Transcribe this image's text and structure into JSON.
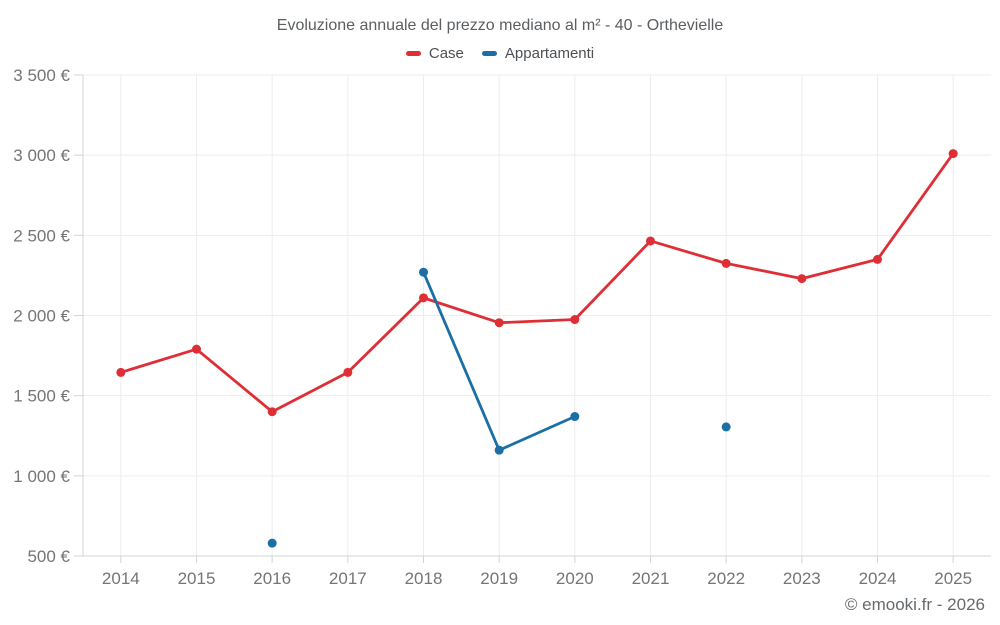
{
  "chart_data": {
    "type": "line",
    "title": "Evoluzione annuale del prezzo mediano al m² - 40 - Orthevielle",
    "footer": "© emooki.fr - 2026",
    "categories": [
      "2014",
      "2015",
      "2016",
      "2017",
      "2018",
      "2019",
      "2020",
      "2021",
      "2022",
      "2023",
      "2024",
      "2025"
    ],
    "series": [
      {
        "name": "Case",
        "color": "#df2f36",
        "values": [
          1645,
          1790,
          1400,
          1645,
          2110,
          1955,
          1975,
          2465,
          2325,
          2230,
          2350,
          3010
        ]
      },
      {
        "name": "Appartamenti",
        "color": "#1a6fa5",
        "values": [
          null,
          null,
          580,
          null,
          2270,
          1160,
          1370,
          null,
          1305,
          null,
          null,
          null
        ]
      }
    ],
    "ylim": [
      500,
      3500
    ],
    "yticks": [
      {
        "value": 500,
        "label": "500 €"
      },
      {
        "value": 1000,
        "label": "1 000 €"
      },
      {
        "value": 1500,
        "label": "1 500 €"
      },
      {
        "value": 2000,
        "label": "2 000 €"
      },
      {
        "value": 2500,
        "label": "2 500 €"
      },
      {
        "value": 3000,
        "label": "3 000 €"
      },
      {
        "value": 3500,
        "label": "3 500 €"
      }
    ],
    "grid": true,
    "legend_position": "top",
    "colors": {
      "grid": "#ededed",
      "axis": "#d4d4d4",
      "tick_text": "#757575",
      "title_text": "#5b5e61"
    }
  }
}
